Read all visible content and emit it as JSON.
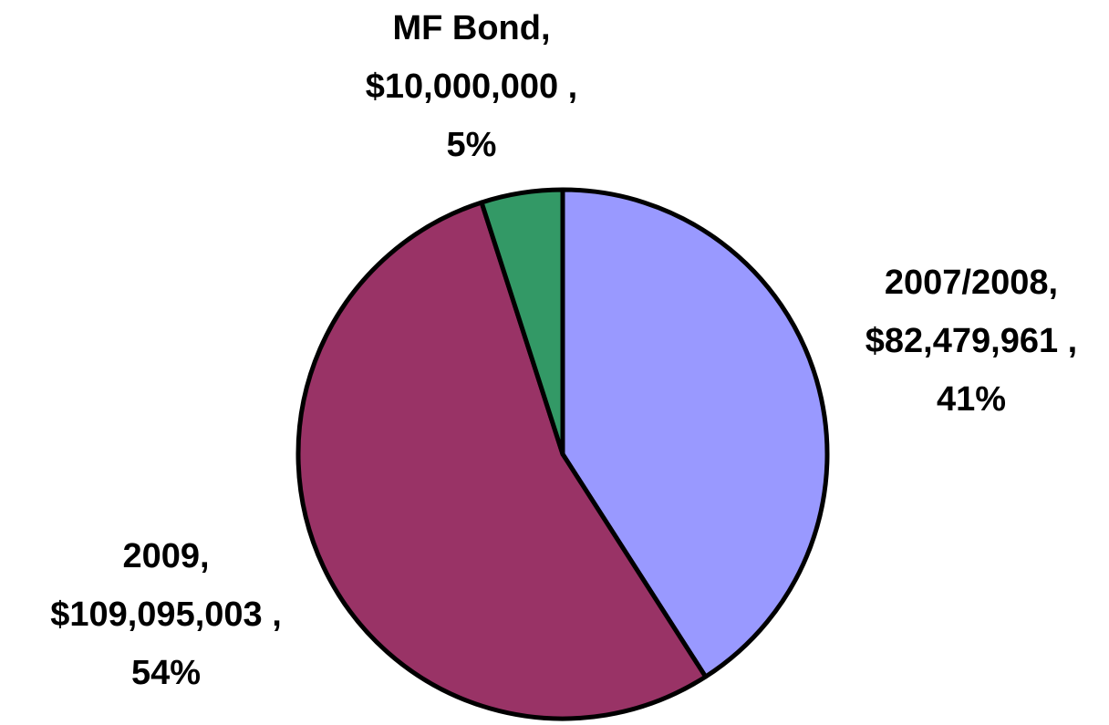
{
  "chart_data": {
    "type": "pie",
    "categories": [
      "2007/2008",
      "2009",
      "MF Bond"
    ],
    "label_separator": ",",
    "values": [
      82479961,
      109095003,
      10000000
    ],
    "value_labels": [
      "$82,479,961 ,",
      "$109,095,003 ,",
      "$10,000,000 ,"
    ],
    "percents": [
      41,
      54,
      5
    ],
    "percent_labels": [
      "41%",
      "54%",
      "5%"
    ],
    "colors": [
      "#9999ff",
      "#993366",
      "#339966"
    ],
    "start_angle": 0,
    "direction": "clockwise"
  }
}
